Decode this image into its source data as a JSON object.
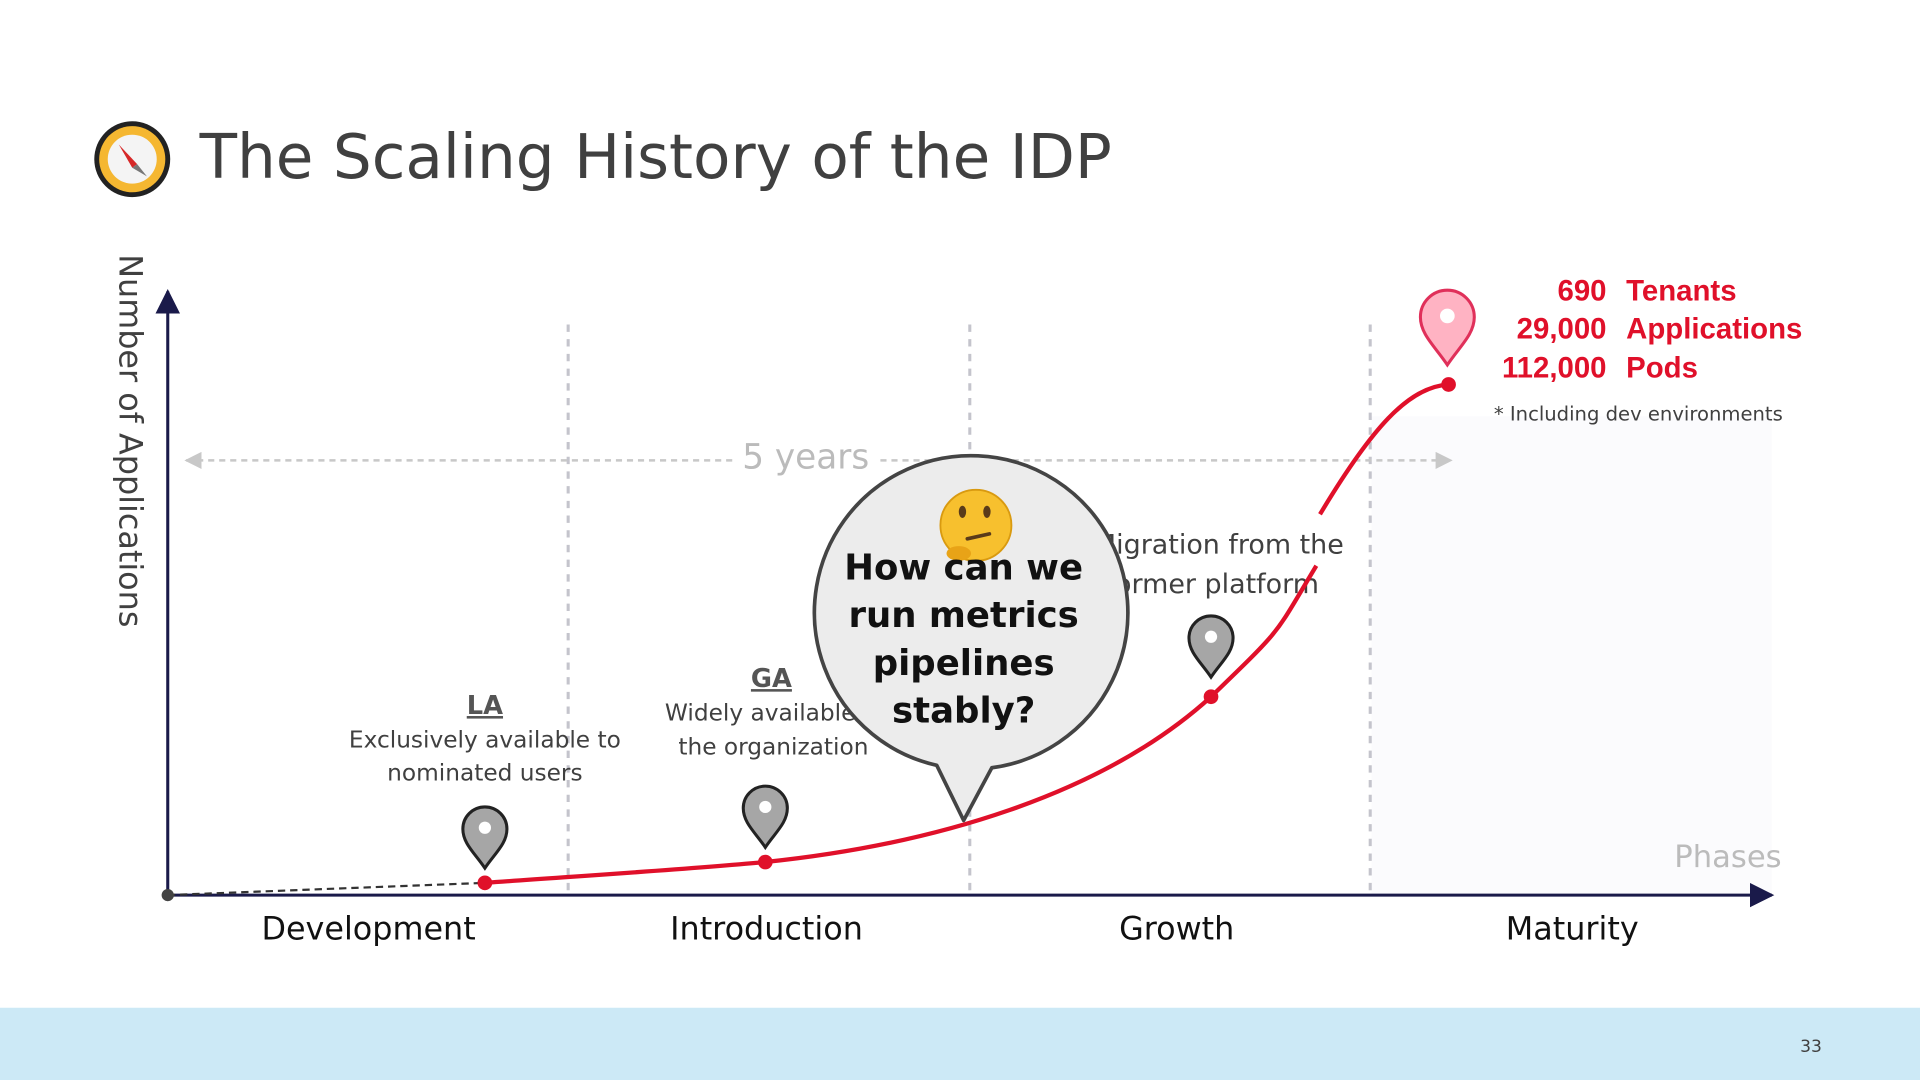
{
  "title": "The Scaling History of the IDP",
  "y_axis_label": "Number of Applications",
  "x_axis_label": "Phases",
  "phases": [
    "Development",
    "Introduction",
    "Growth",
    "Maturity"
  ],
  "span_label": "5 years",
  "milestones": [
    {
      "title": "LA",
      "description": [
        "Exclusively available to",
        "nominated users"
      ]
    },
    {
      "title": "GA",
      "description": [
        "Widely available in",
        "the organization"
      ]
    },
    {
      "description": [
        "Migration from the",
        "former platform"
      ]
    }
  ],
  "stats": [
    {
      "number": "690",
      "label": "Tenants"
    },
    {
      "number": "29,000",
      "label": "Applications"
    },
    {
      "number": "112,000",
      "label": "Pods"
    }
  ],
  "footnote": "* Including dev environments",
  "callout": [
    "How can we",
    "run metrics",
    "pipelines",
    "stably?"
  ],
  "page_number": "33"
}
